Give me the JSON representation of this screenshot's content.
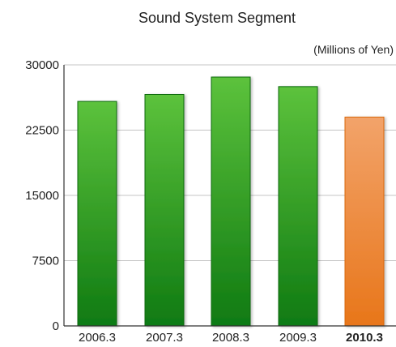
{
  "chart_data": {
    "type": "bar",
    "title": "Sound System Segment",
    "unit_label": "(Millions of Yen)",
    "xlabel": "",
    "ylabel": "",
    "categories": [
      "2006.3",
      "2007.3",
      "2008.3",
      "2009.3",
      "2010.3"
    ],
    "values": [
      25800,
      26600,
      28600,
      27500,
      24000
    ],
    "ylim": [
      0,
      30000
    ],
    "yticks": [
      "0",
      "7500",
      "15000",
      "22500",
      "30000"
    ],
    "grid": true,
    "legend": "none",
    "highlight_index": 4,
    "colors": {
      "bar_top": "#5cc23c",
      "bar_bottom": "#0f7a12",
      "bar_edge": "#0a6a0c",
      "highlight_top": "#f2a36a",
      "highlight_bottom": "#e8761a",
      "highlight_edge": "#d9690f",
      "highlight_text": "#f07e12",
      "grid": "#c4c4c4",
      "axis": "#333333"
    }
  }
}
